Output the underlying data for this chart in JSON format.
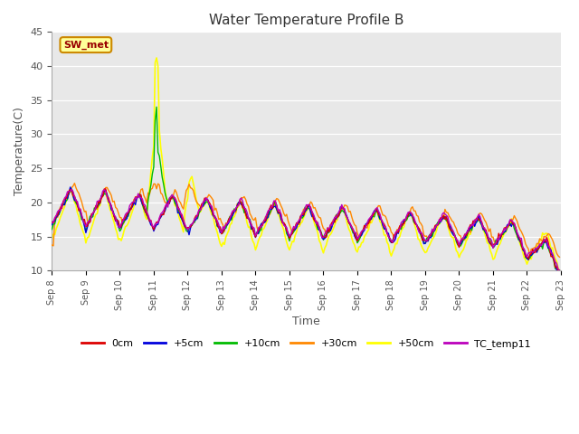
{
  "title": "Water Temperature Profile B",
  "xlabel": "Time",
  "ylabel": "Temperature(C)",
  "ylim": [
    10,
    45
  ],
  "yticks": [
    10,
    15,
    20,
    25,
    30,
    35,
    40,
    45
  ],
  "fig_bg_color": "#ffffff",
  "plot_bg_color": "#e8e8e8",
  "series": {
    "0cm": {
      "color": "#dd0000",
      "lw": 1.0
    },
    "+5cm": {
      "color": "#0000dd",
      "lw": 1.0
    },
    "+10cm": {
      "color": "#00bb00",
      "lw": 1.0
    },
    "+30cm": {
      "color": "#ff8800",
      "lw": 1.0
    },
    "+50cm": {
      "color": "#ffff00",
      "lw": 1.2
    },
    "TC_temp11": {
      "color": "#bb00bb",
      "lw": 1.0
    }
  },
  "annotation_text": "SW_met",
  "annotation_bg": "#ffff99",
  "annotation_border": "#cc8800",
  "annotation_text_color": "#990000",
  "xtick_labels": [
    "Sep 8",
    "Sep 9",
    "Sep 10",
    "Sep 11",
    "Sep 12",
    "Sep 13",
    "Sep 14",
    "Sep 15",
    "Sep 16",
    "Sep 17",
    "Sep 18",
    "Sep 19",
    "Sep 20",
    "Sep 21",
    "Sep 22",
    "Sep 23"
  ]
}
